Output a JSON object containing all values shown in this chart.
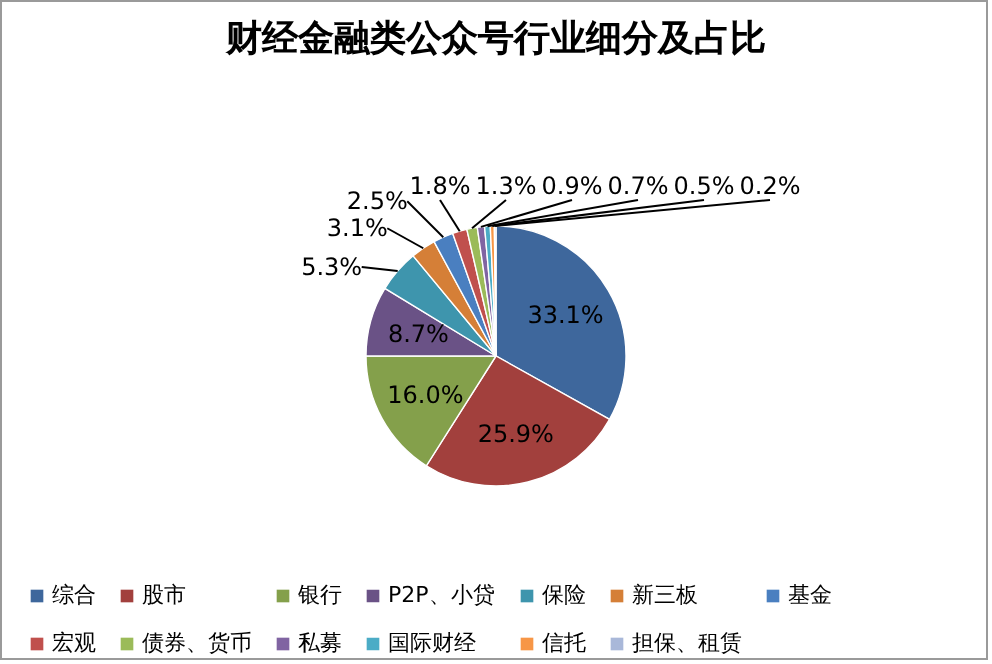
{
  "chart_data": {
    "type": "pie",
    "title": "财经金融类公众号行业细分及占比",
    "categories": [
      "综合",
      "股市",
      "银行",
      "P2P、小贷",
      "保险",
      "新三板",
      "基金",
      "宏观",
      "债券、货币",
      "私募",
      "国际财经",
      "信托",
      "担保、租赁"
    ],
    "values": [
      33.1,
      25.9,
      16.0,
      8.7,
      5.3,
      3.1,
      2.5,
      1.8,
      1.3,
      0.9,
      0.7,
      0.5,
      0.2
    ],
    "value_labels": [
      "33.1%",
      "25.9%",
      "16.0%",
      "8.7%",
      "5.3%",
      "3.1%",
      "2.5%",
      "1.8%",
      "1.3%",
      "0.9%",
      "0.7%",
      "0.5%",
      "0.2%"
    ],
    "colors": [
      "#3e679c",
      "#a2403d",
      "#84a04b",
      "#6a5286",
      "#3e95ad",
      "#d57f37",
      "#4a7fc0",
      "#c0504d",
      "#9bbb59",
      "#8064a2",
      "#4bacc6",
      "#f79646",
      "#a9b8d9"
    ],
    "legend": "bottom"
  }
}
